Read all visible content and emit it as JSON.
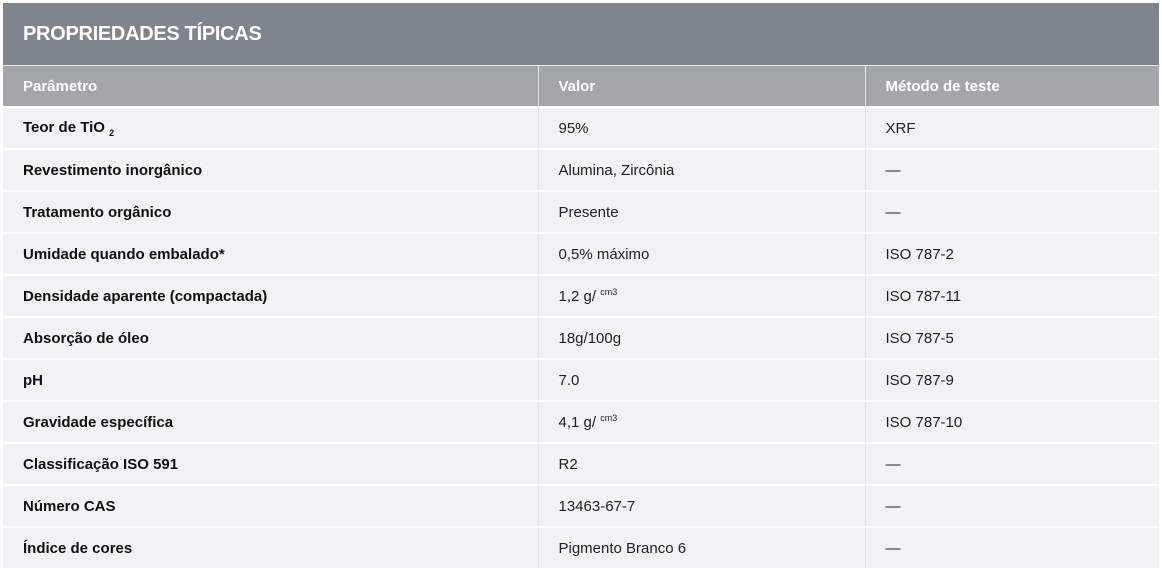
{
  "title": "PROPRIEDADES TÍPICAS",
  "columns": [
    "Parâmetro",
    "Valor",
    "Método de teste"
  ],
  "rows": [
    {
      "param": "Teor de TiO",
      "param_sub": "2",
      "value": "95%",
      "value_sup": "",
      "method": "XRF"
    },
    {
      "param": "Revestimento inorgânico",
      "param_sub": "",
      "value": "Alumina, Zircônia",
      "value_sup": "",
      "method": "—"
    },
    {
      "param": "Tratamento orgânico",
      "param_sub": "",
      "value": "Presente",
      "value_sup": "",
      "method": "—"
    },
    {
      "param": "Umidade quando embalado*",
      "param_sub": "",
      "value": "0,5% máximo",
      "value_sup": "",
      "method": "ISO 787-2"
    },
    {
      "param": "Densidade aparente (compactada)",
      "param_sub": "",
      "value": "1,2 g/ ",
      "value_sup": "cm3",
      "method": "ISO 787-11"
    },
    {
      "param": "Absorção de óleo",
      "param_sub": "",
      "value": "18g/100g",
      "value_sup": "",
      "method": "ISO 787-5"
    },
    {
      "param": "pH",
      "param_sub": "",
      "value": "7.0",
      "value_sup": "",
      "method": "ISO 787-9"
    },
    {
      "param": "Gravidade específica",
      "param_sub": "",
      "value": "4,1 g/ ",
      "value_sup": "cm3",
      "method": "ISO 787-10"
    },
    {
      "param": "Classificação ISO 591",
      "param_sub": "",
      "value": "R2",
      "value_sup": "",
      "method": "—"
    },
    {
      "param": "Número CAS",
      "param_sub": "",
      "value": "13463-67-7",
      "value_sup": "",
      "method": "—"
    },
    {
      "param": "Índice de cores",
      "param_sub": "",
      "value": "Pigmento Branco 6",
      "value_sup": "",
      "method": "—"
    }
  ]
}
